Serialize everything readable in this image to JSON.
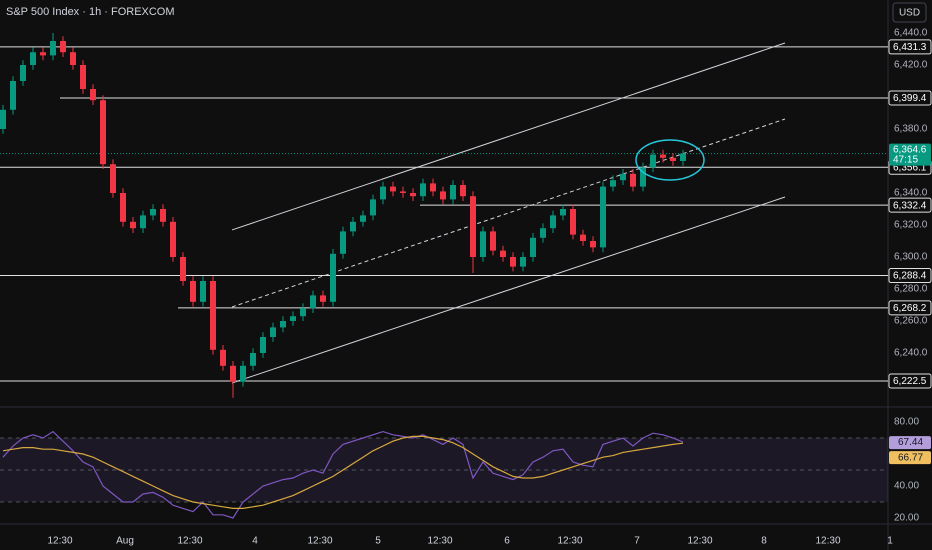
{
  "chart_data": [
    {
      "type": "candlestick",
      "title": "S&P 500 Index · 1h · FOREXCOM",
      "currency": "USD",
      "up_color": "#089981",
      "down_color": "#f23645",
      "x": [
        0,
        1,
        2,
        3,
        4,
        5,
        6,
        7,
        8,
        9,
        10,
        11,
        12,
        13,
        14,
        15,
        16,
        17,
        18,
        19,
        20,
        21,
        22,
        23,
        24,
        25,
        26,
        27,
        28,
        29,
        30,
        31,
        32,
        33,
        34,
        35,
        36,
        37,
        38,
        39,
        40,
        41,
        42,
        43,
        44,
        45,
        46,
        47,
        48,
        49,
        50,
        51,
        52,
        53,
        54,
        55,
        56,
        57,
        58,
        59,
        60,
        61,
        62,
        63,
        64,
        65,
        66,
        67,
        68
      ],
      "open": [
        6380,
        6392,
        6410,
        6420,
        6428,
        6426,
        6435,
        6428,
        6420,
        6405,
        6398,
        6358,
        6340,
        6322,
        6318,
        6326,
        6330,
        6322,
        6300,
        6285,
        6272,
        6285,
        6242,
        6232,
        6222,
        6232,
        6240,
        6250,
        6256,
        6260,
        6263,
        6268,
        6276,
        6272,
        6302,
        6316,
        6322,
        6326,
        6336,
        6344,
        6341,
        6340,
        6338,
        6346,
        6341,
        6336,
        6345,
        6338,
        6300,
        6316,
        6304,
        6300,
        6294,
        6300,
        6312,
        6318,
        6326,
        6330,
        6314,
        6310,
        6306,
        6344,
        6348,
        6352,
        6344,
        6356,
        6364,
        6362,
        6360
      ],
      "high": [
        6395,
        6413,
        6423,
        6431,
        6431,
        6440,
        6438,
        6431,
        6423,
        6408,
        6401,
        6361,
        6343,
        6325,
        6329,
        6333,
        6333,
        6325,
        6303,
        6288,
        6288,
        6288,
        6245,
        6235,
        6235,
        6243,
        6253,
        6259,
        6263,
        6266,
        6271,
        6279,
        6279,
        6305,
        6319,
        6325,
        6329,
        6339,
        6347,
        6347,
        6344,
        6343,
        6349,
        6349,
        6344,
        6348,
        6348,
        6341,
        6319,
        6319,
        6307,
        6303,
        6303,
        6315,
        6321,
        6329,
        6333,
        6333,
        6317,
        6313,
        6347,
        6351,
        6355,
        6355,
        6359,
        6367,
        6367,
        6365,
        6367
      ],
      "low": [
        6377,
        6389,
        6407,
        6417,
        6423,
        6423,
        6425,
        6417,
        6402,
        6395,
        6355,
        6337,
        6319,
        6315,
        6315,
        6323,
        6319,
        6297,
        6282,
        6269,
        6269,
        6239,
        6229,
        6212,
        6219,
        6229,
        6237,
        6247,
        6253,
        6257,
        6260,
        6265,
        6269,
        6269,
        6299,
        6313,
        6319,
        6323,
        6333,
        6338,
        6337,
        6335,
        6335,
        6338,
        6333,
        6333,
        6335,
        6290,
        6297,
        6301,
        6297,
        6291,
        6291,
        6297,
        6309,
        6315,
        6323,
        6311,
        6307,
        6303,
        6303,
        6341,
        6345,
        6341,
        6341,
        6353,
        6359,
        6357,
        6357
      ],
      "close": [
        6392,
        6410,
        6420,
        6428,
        6426,
        6435,
        6428,
        6420,
        6405,
        6398,
        6358,
        6340,
        6322,
        6318,
        6326,
        6330,
        6322,
        6300,
        6285,
        6272,
        6285,
        6242,
        6232,
        6222,
        6232,
        6240,
        6250,
        6256,
        6260,
        6263,
        6268,
        6276,
        6272,
        6302,
        6316,
        6322,
        6326,
        6336,
        6344,
        6341,
        6340,
        6338,
        6346,
        6341,
        6336,
        6345,
        6338,
        6300,
        6316,
        6304,
        6300,
        6294,
        6300,
        6312,
        6318,
        6326,
        6330,
        6314,
        6310,
        6306,
        6344,
        6348,
        6352,
        6344,
        6356,
        6364,
        6362,
        6360,
        6364.6
      ],
      "xlim": [
        -0.3,
        92.9
      ],
      "xticks": [
        {
          "value": 5.7,
          "label": "12:30"
        },
        {
          "value": 12.2,
          "label": "Aug"
        },
        {
          "value": 18.7,
          "label": "12:30"
        },
        {
          "value": 25.2,
          "label": "4"
        },
        {
          "value": 31.7,
          "label": "12:30"
        },
        {
          "value": 37.5,
          "label": "5"
        },
        {
          "value": 43.7,
          "label": "12:30"
        },
        {
          "value": 50.4,
          "label": "6"
        },
        {
          "value": 56.7,
          "label": "12:30"
        },
        {
          "value": 63.4,
          "label": "7"
        },
        {
          "value": 69.7,
          "label": "12:30"
        },
        {
          "value": 76.1,
          "label": "8"
        },
        {
          "value": 82.5,
          "label": "12:30"
        },
        {
          "value": 88.7,
          "label": "1"
        }
      ],
      "ylim": [
        6207.5,
        6460.625
      ],
      "yticks": [
        {
          "value": 6440,
          "label": "6,440.0"
        },
        {
          "value": 6420,
          "label": "6,420.0"
        },
        {
          "value": 6380,
          "label": "6,380.0"
        },
        {
          "value": 6340,
          "label": "6,340.0"
        },
        {
          "value": 6320,
          "label": "6,320.0"
        },
        {
          "value": 6300,
          "label": "6,300.0"
        },
        {
          "value": 6280,
          "label": "6,280.0"
        },
        {
          "value": 6260,
          "label": "6,260.0"
        },
        {
          "value": 6240,
          "label": "6,240.0"
        }
      ],
      "levels": [
        {
          "value": 6431.3,
          "label": "6,431.3",
          "start": -0.3
        },
        {
          "value": 6399.4,
          "label": "6,399.4",
          "start": 5.7
        },
        {
          "value": 6356.1,
          "label": "6,356.1",
          "start": -0.3
        },
        {
          "value": 6332.4,
          "label": "6,332.4",
          "start": 41.7
        },
        {
          "value": 6288.4,
          "label": "6,288.4",
          "start": -0.3
        },
        {
          "value": 6268.2,
          "label": "6,268.2",
          "start": 17.5
        },
        {
          "value": 6222.5,
          "label": "6,222.5",
          "start": -0.3
        }
      ],
      "level_color": "#e0e0e0",
      "trendlines": [
        {
          "x": [
            22.9,
            78.2
          ],
          "y": [
            6316.9,
            6433.75
          ],
          "style": "solid"
        },
        {
          "x": [
            22.9,
            78.2
          ],
          "y": [
            6268.75,
            6386.25
          ],
          "style": "dashed"
        },
        {
          "x": [
            22.9,
            78.2
          ],
          "y": [
            6221.25,
            6337.5
          ],
          "style": "solid"
        }
      ],
      "trend_color": "#d1d4dc",
      "last_price": {
        "value": 6364.6,
        "value_label": "6,364.6",
        "countdown": "47:15",
        "color": "#089981"
      }
    },
    {
      "type": "line",
      "series": [
        {
          "color": "#7e57c2",
          "label_color": "#b39ddb",
          "values": [
            58,
            65,
            70,
            72,
            70,
            74,
            68,
            62,
            55,
            52,
            40,
            35,
            30,
            30,
            35,
            36,
            33,
            28,
            26,
            24,
            30,
            22,
            22,
            20,
            30,
            35,
            40,
            42,
            44,
            45,
            48,
            50,
            48,
            60,
            66,
            68,
            70,
            72,
            74,
            72,
            71,
            70,
            72,
            69,
            66,
            70,
            66,
            45,
            55,
            48,
            46,
            44,
            47,
            55,
            58,
            62,
            63,
            55,
            53,
            52,
            66,
            68,
            70,
            65,
            70,
            73,
            72,
            70,
            67.44
          ]
        },
        {
          "color": "#d8a93f",
          "label_color": "#f0c060",
          "values": [
            62,
            63,
            64,
            64,
            63,
            63,
            62,
            61,
            60,
            58,
            55,
            52,
            49,
            46,
            43,
            40,
            37,
            34,
            32,
            30,
            29,
            28,
            27,
            26,
            26,
            27,
            28,
            30,
            32,
            34,
            37,
            40,
            43,
            46,
            50,
            54,
            58,
            62,
            65,
            68,
            70,
            71,
            71,
            70,
            69,
            67,
            64,
            60,
            56,
            52,
            49,
            46,
            45,
            45,
            46,
            48,
            50,
            52,
            54,
            56,
            58,
            59,
            61,
            62,
            63,
            64,
            65,
            66,
            66.77
          ]
        }
      ],
      "ylim": [
        17.5,
        87.5
      ],
      "yticks": [
        {
          "value": 80,
          "label": "80.00"
        },
        {
          "value": 40,
          "label": "40.00"
        },
        {
          "value": 20,
          "label": "20.00"
        }
      ],
      "bands": [
        70,
        50,
        30
      ]
    }
  ]
}
